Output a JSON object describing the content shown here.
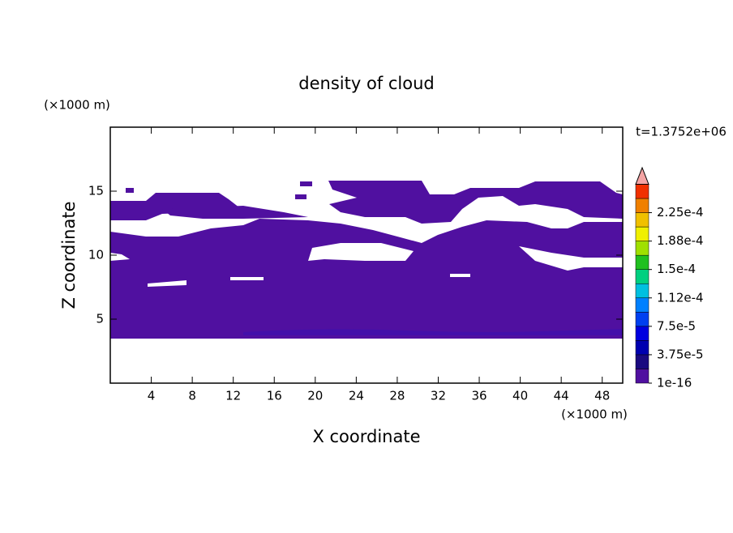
{
  "chart_data": {
    "type": "contour",
    "title": "density of cloud",
    "x_label": "X coordinate",
    "y_label": "Z coordinate",
    "x_unit": "(×1000 m)",
    "y_unit": "(×1000 m)",
    "time_label": "t=1.3752e+06",
    "xlim": [
      0,
      50
    ],
    "xticks": [
      4,
      8,
      12,
      16,
      20,
      24,
      28,
      32,
      36,
      40,
      44,
      48
    ],
    "ylim": [
      0,
      20
    ],
    "yticks": [
      5,
      10,
      15
    ],
    "fill_color": "#5010a0",
    "colorbar": {
      "lim": [
        1e-16,
        0.00024375
      ],
      "ticks": [
        1e-16,
        {
          "value": 3.75e-05,
          "label": "3.75e-5"
        },
        {
          "value": 7.5e-05,
          "label": "7.5e-5"
        },
        {
          "value": 0.0001125,
          "label": "1.12e-4"
        },
        {
          "value": 0.00015,
          "label": "1.5e-4"
        },
        {
          "value": 0.0001875,
          "label": "1.88e-4"
        },
        {
          "value": 0.000225,
          "label": "2.25e-4"
        }
      ],
      "colors": [
        "#5010a0",
        "#1a0a80",
        "#0000b0",
        "#0000e0",
        "#0040f0",
        "#0080ff",
        "#00c0e0",
        "#00d080",
        "#20c020",
        "#a0e000",
        "#f0f000",
        "#f0c000",
        "#f08000",
        "#f03000"
      ],
      "extend_color": "#f4a4a4"
    }
  }
}
